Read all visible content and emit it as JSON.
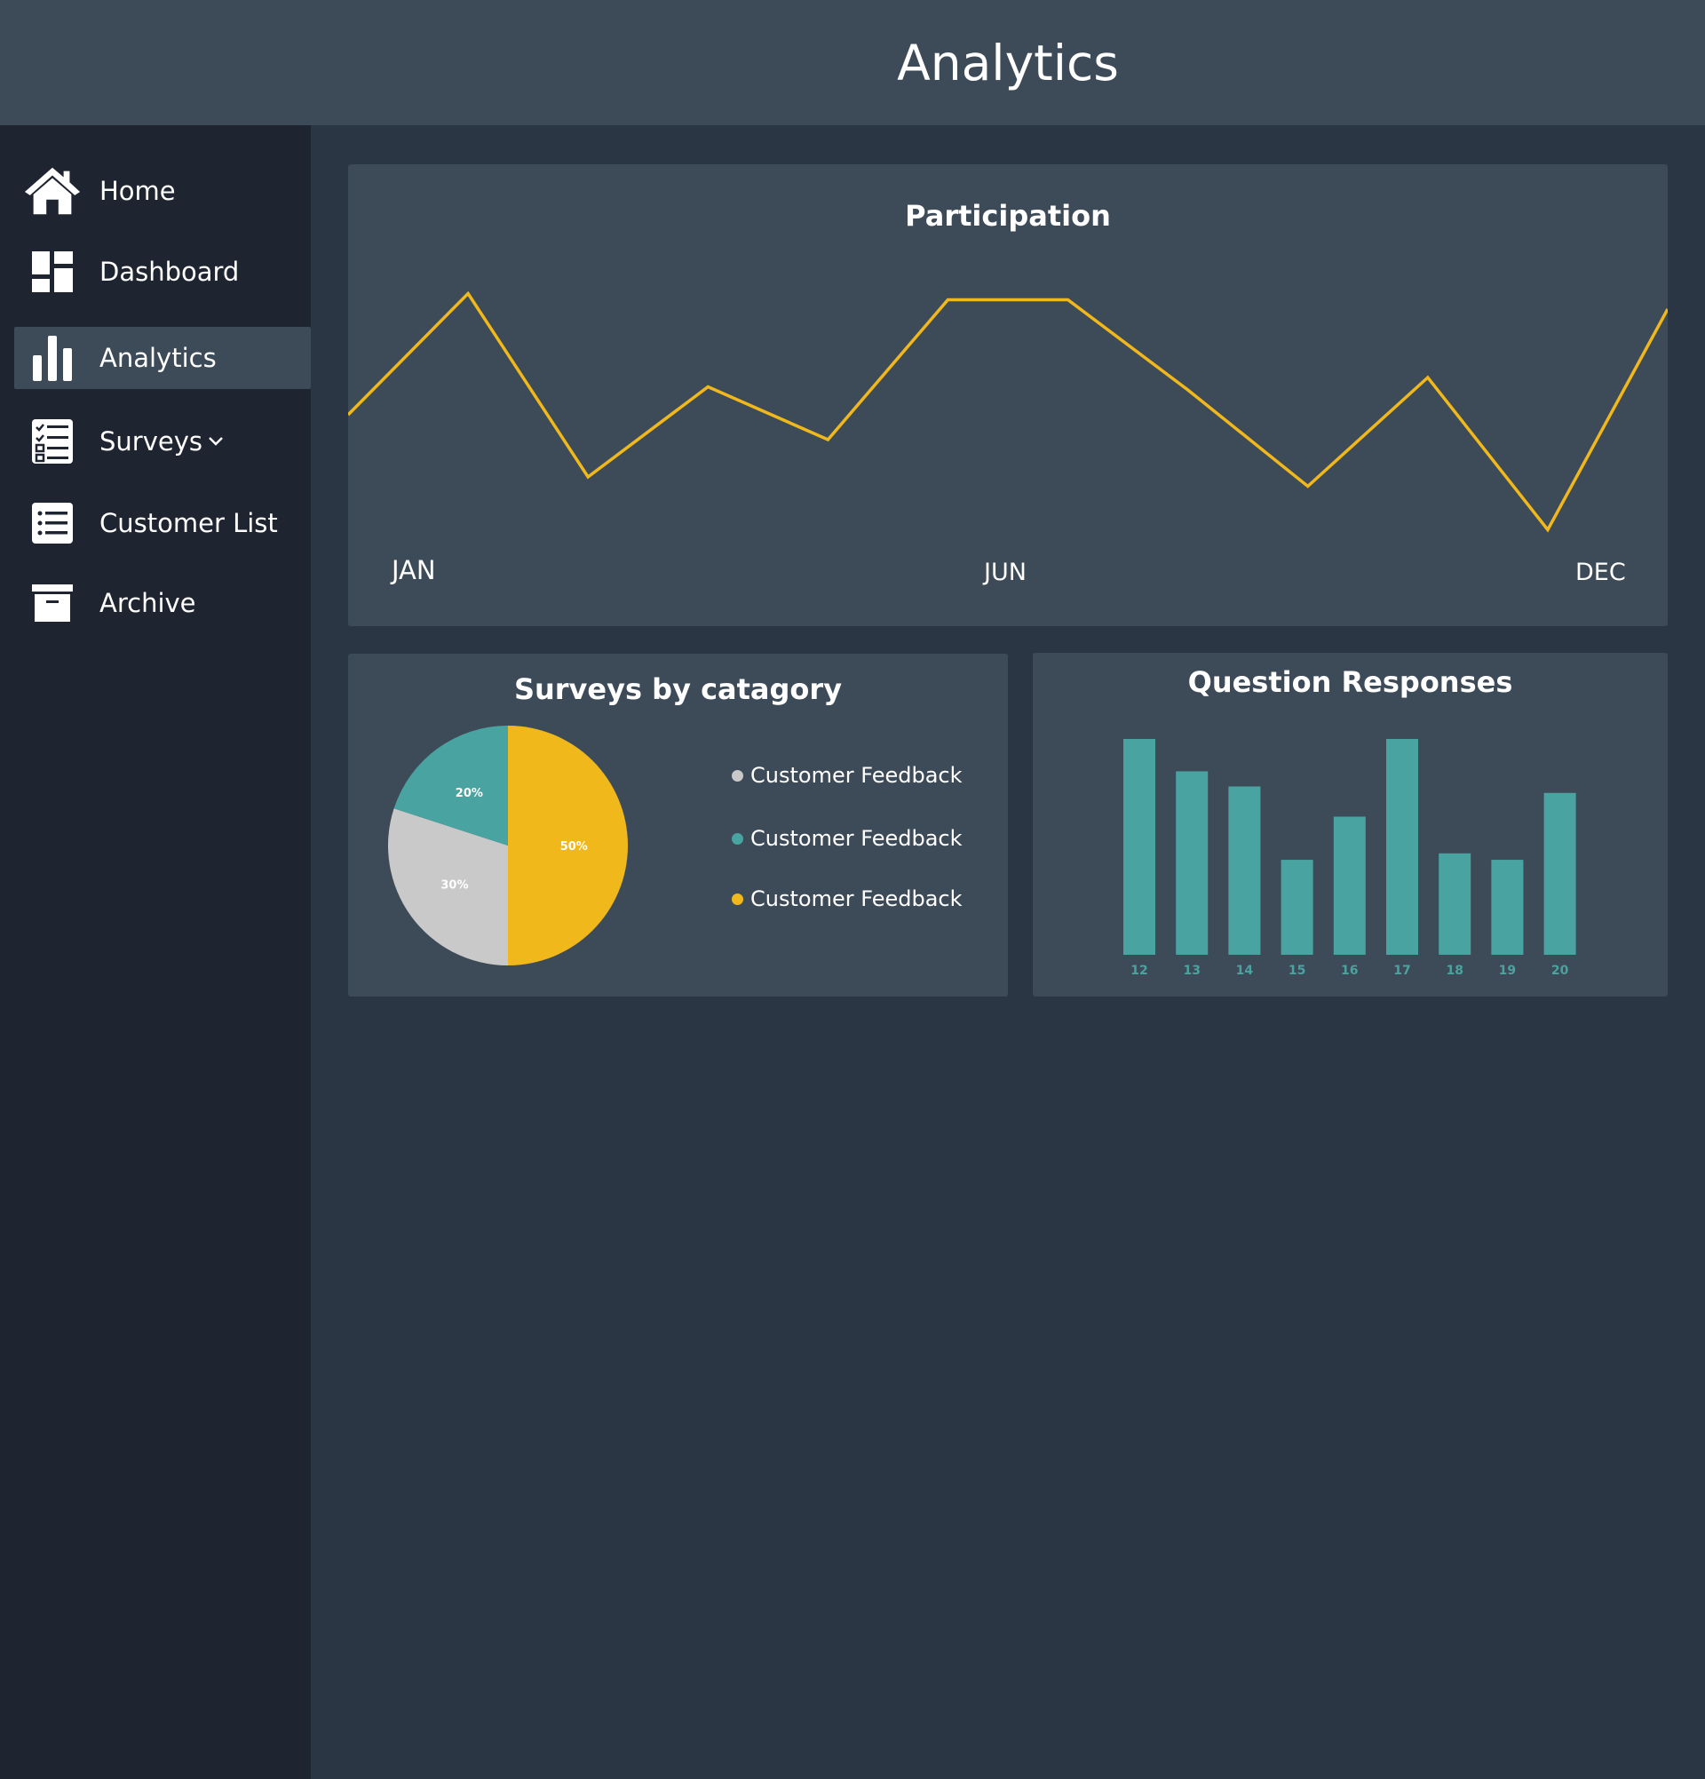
{
  "header": {
    "title": "Analytics"
  },
  "sidebar": {
    "items": [
      {
        "label": "Home",
        "icon": "home-icon"
      },
      {
        "label": "Dashboard",
        "icon": "dashboard-icon"
      },
      {
        "label": "Analytics",
        "icon": "bar-chart-icon",
        "active": true
      },
      {
        "label": "Surveys",
        "icon": "checklist-icon",
        "has_dropdown": true
      },
      {
        "label": "Customer List",
        "icon": "list-icon"
      },
      {
        "label": "Archive",
        "icon": "archive-icon"
      }
    ]
  },
  "colors": {
    "accent_yellow": "#f0b81a",
    "teal": "#49a3a0",
    "gray": "#c9c9c9",
    "panel": "#3d4b59",
    "sidebar": "#1f2431",
    "background": "#2b3644"
  },
  "chart_data": [
    {
      "type": "line",
      "title": "Participation",
      "x_labels_shown": [
        "JAN",
        "JUN",
        "DEC"
      ],
      "series": [
        {
          "values": [
            48,
            87,
            28,
            57,
            40,
            85,
            85,
            56,
            25,
            60,
            11,
            82
          ],
          "color": "#f0b81a"
        }
      ],
      "grid": false
    },
    {
      "type": "pie",
      "title": "Surveys by catagory",
      "slices": [
        {
          "label": "50%",
          "value": 50,
          "color": "#f0b81a"
        },
        {
          "label": "30%",
          "value": 30,
          "color": "#c9c9c9"
        },
        {
          "label": "20%",
          "value": 20,
          "color": "#49a3a0"
        }
      ],
      "legend": [
        {
          "label": "Customer Feedback",
          "color": "#c9c9c9"
        },
        {
          "label": "Customer Feedback",
          "color": "#49a3a0"
        },
        {
          "label": "Customer Feedback",
          "color": "#f0b81a"
        }
      ],
      "legend_position": "right"
    },
    {
      "type": "bar",
      "title": "Question Responses",
      "categories": [
        "12",
        "13",
        "14",
        "15",
        "16",
        "17",
        "18",
        "19",
        "20"
      ],
      "values": [
        100,
        85,
        78,
        44,
        64,
        100,
        47,
        44,
        75
      ],
      "color": "#49a3a0",
      "ylim": [
        0,
        100
      ],
      "grid": false
    }
  ]
}
